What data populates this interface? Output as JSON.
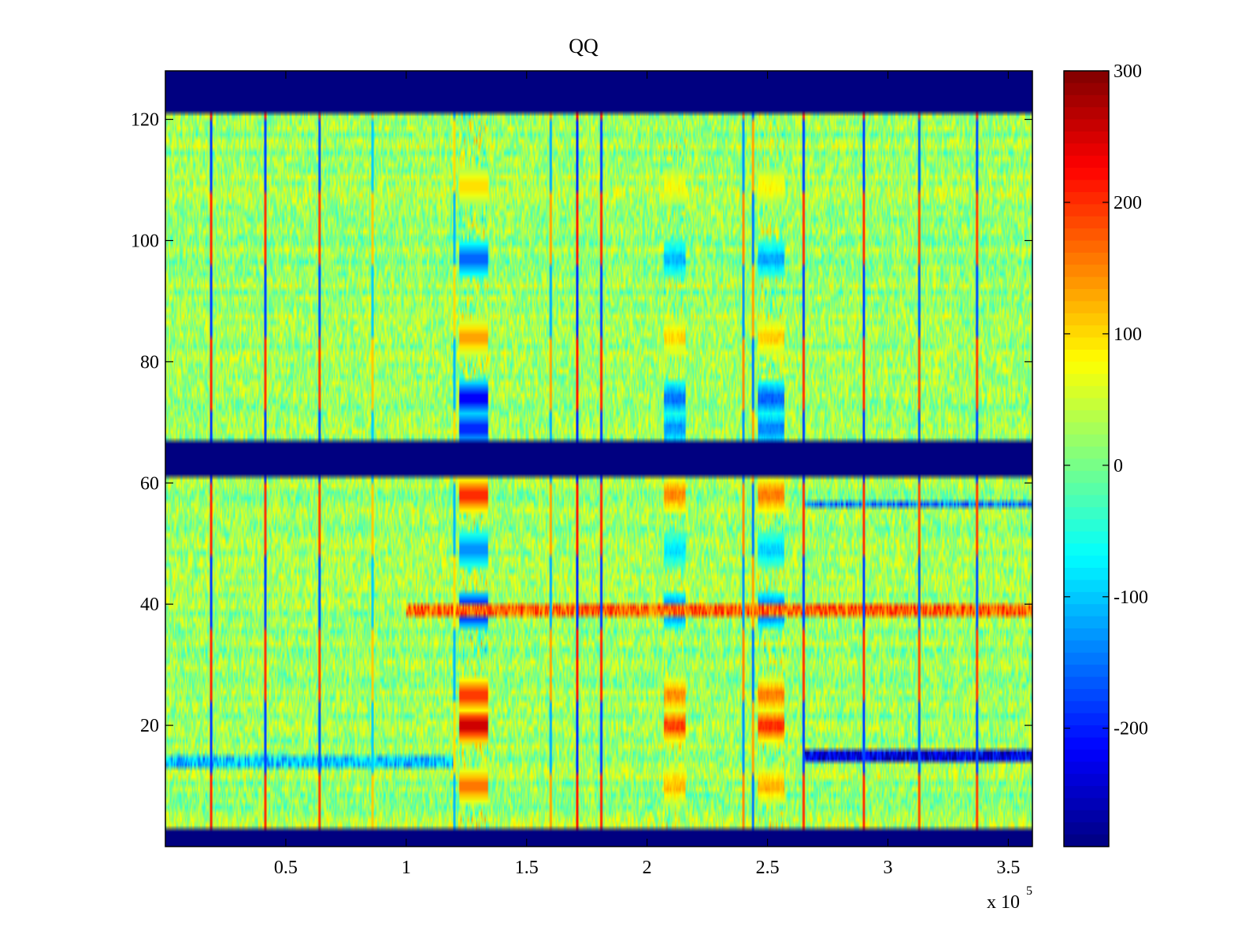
{
  "chart_data": {
    "type": "heatmap",
    "title": "QQ",
    "xlabel": "",
    "ylabel": "",
    "x_multiplier_label": "x 10",
    "x_multiplier_exponent": "5",
    "xlim": [
      0,
      360000
    ],
    "ylim": [
      0,
      128
    ],
    "xticks": [
      {
        "value": 50000,
        "label": "0.5"
      },
      {
        "value": 100000,
        "label": "1"
      },
      {
        "value": 150000,
        "label": "1.5"
      },
      {
        "value": 200000,
        "label": "2"
      },
      {
        "value": 250000,
        "label": "2.5"
      },
      {
        "value": 300000,
        "label": "3"
      },
      {
        "value": 350000,
        "label": "3.5"
      }
    ],
    "yticks": [
      {
        "value": 20,
        "label": "20"
      },
      {
        "value": 40,
        "label": "40"
      },
      {
        "value": 60,
        "label": "60"
      },
      {
        "value": 80,
        "label": "80"
      },
      {
        "value": 100,
        "label": "100"
      },
      {
        "value": 120,
        "label": "120"
      }
    ],
    "colormap": "jet",
    "clim": [
      -290,
      300
    ],
    "colorbar_ticks": [
      {
        "value": 300,
        "label": "300"
      },
      {
        "value": 200,
        "label": "200"
      },
      {
        "value": 100,
        "label": "100"
      },
      {
        "value": 0,
        "label": "0"
      },
      {
        "value": -100,
        "label": "-100"
      },
      {
        "value": -200,
        "label": "-200"
      }
    ],
    "background_level": 20,
    "masked_row_bands": [
      {
        "y_from": 0,
        "y_to": 3,
        "value": -290
      },
      {
        "y_from": 61.5,
        "y_to": 67.5,
        "value": -290
      },
      {
        "y_from": 121.5,
        "y_to": 128,
        "value": -290
      }
    ],
    "vertical_lines": [
      {
        "x": 19000,
        "peak": 280
      },
      {
        "x": 41500,
        "peak": 270
      },
      {
        "x": 64000,
        "peak": 260
      },
      {
        "x": 86000,
        "peak": 150
      },
      {
        "x": 120000,
        "peak": -150
      },
      {
        "x": 160000,
        "peak": 180
      },
      {
        "x": 171000,
        "peak": 290
      },
      {
        "x": 181000,
        "peak": 280
      },
      {
        "x": 240000,
        "peak": 200
      },
      {
        "x": 244000,
        "peak": -200
      },
      {
        "x": 265000,
        "peak": 270
      },
      {
        "x": 290000,
        "peak": 270
      },
      {
        "x": 313000,
        "peak": 250
      },
      {
        "x": 337000,
        "peak": 260
      }
    ],
    "event_columns": [
      {
        "x_from": 122000,
        "x_to": 134000,
        "strength": 1.0
      },
      {
        "x_from": 207000,
        "x_to": 216000,
        "strength": 0.7
      },
      {
        "x_from": 246000,
        "x_to": 257000,
        "strength": 0.75
      }
    ],
    "column_row_features": [
      {
        "y": 109,
        "value": 110
      },
      {
        "y": 97,
        "value": -180
      },
      {
        "y": 84,
        "value": 150
      },
      {
        "y": 74,
        "value": -250
      },
      {
        "y": 69,
        "value": -220
      },
      {
        "y": 58,
        "value": 230
      },
      {
        "y": 49,
        "value": -150
      },
      {
        "y": 39,
        "value": -280
      },
      {
        "y": 25,
        "value": 220
      },
      {
        "y": 20,
        "value": 290
      },
      {
        "y": 10,
        "value": 180
      }
    ],
    "horizontal_streaks": [
      {
        "y": 39,
        "x_from": 100000,
        "x_to": 360000,
        "value": 170
      },
      {
        "y": 56.5,
        "x_from": 265000,
        "x_to": 360000,
        "value": -150
      },
      {
        "y": 15,
        "x_from": 265000,
        "x_to": 360000,
        "value": -230
      },
      {
        "y": 14,
        "x_from": 0,
        "x_to": 120000,
        "value": -100
      }
    ]
  }
}
